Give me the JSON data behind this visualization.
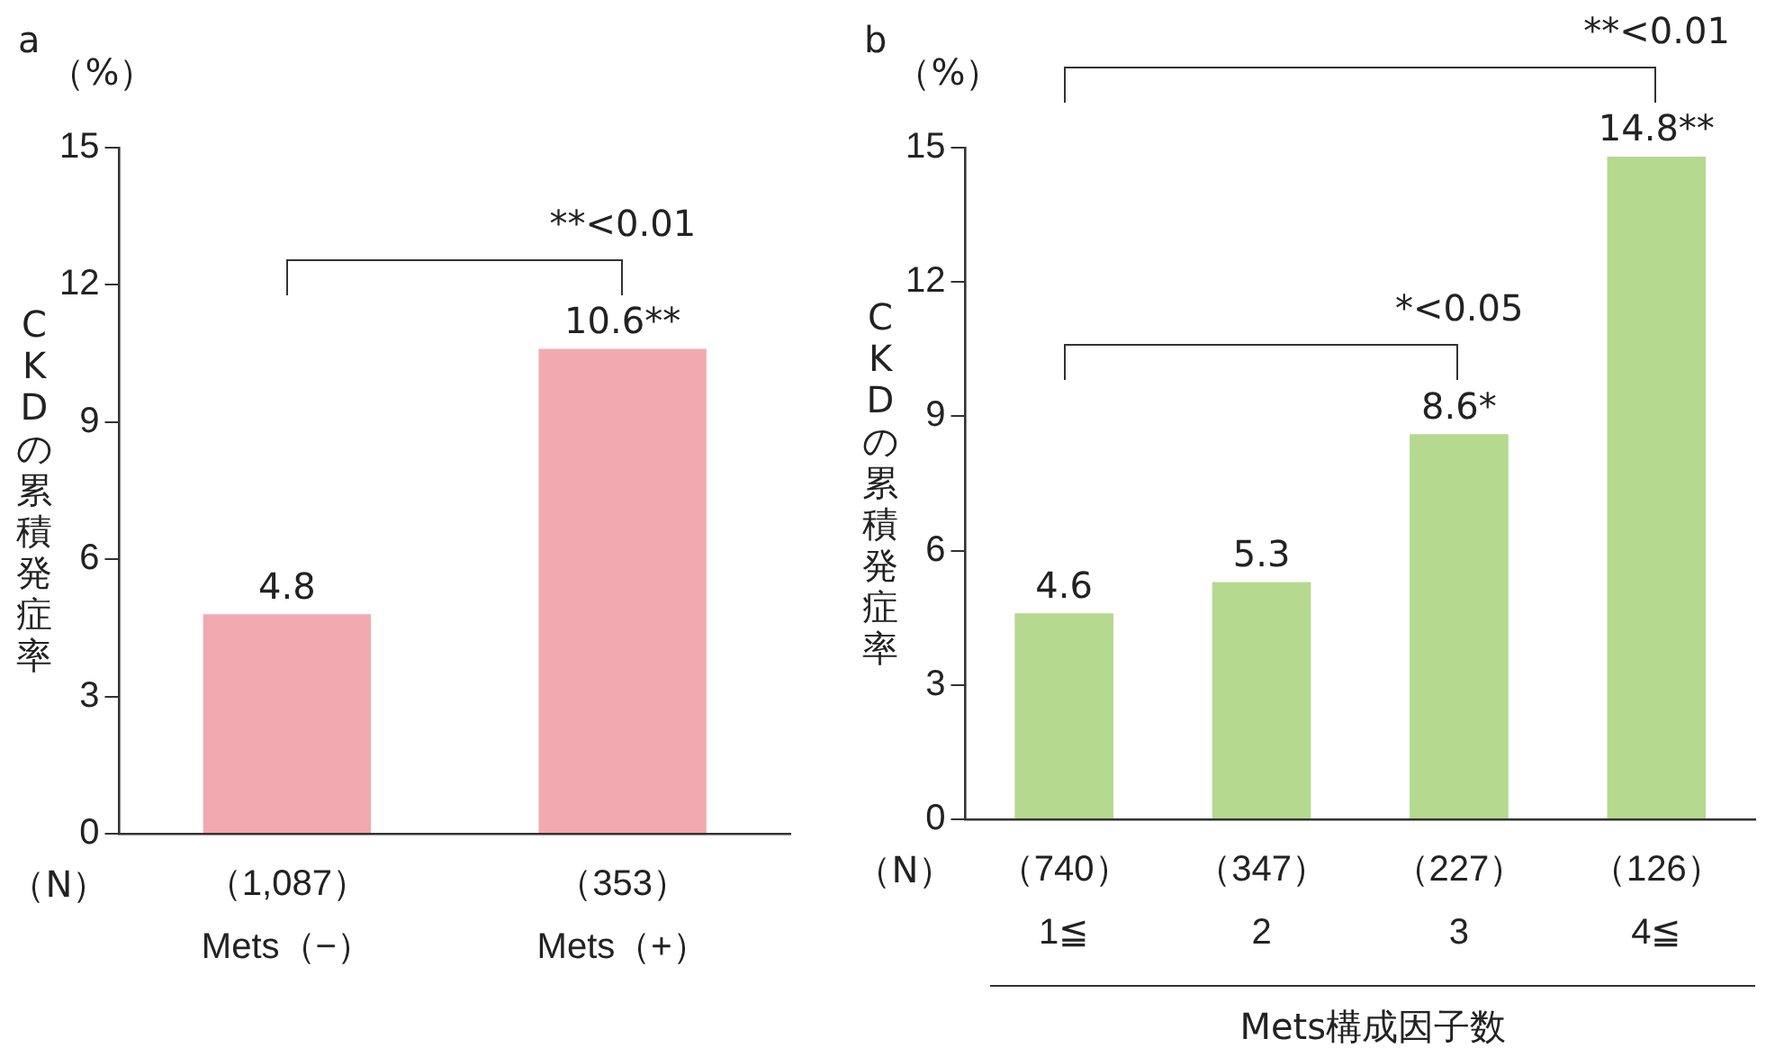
{
  "chart_data": [
    {
      "type": "bar",
      "title": "a",
      "ylabel": "CKDの累積発症率",
      "categories": [
        "（1,087）\nMets（−）",
        "（353）\nMets（+）"
      ],
      "values": [
        4.8,
        10.6
      ],
      "value_labels": [
        "4.8",
        "10.6**"
      ],
      "color": "#f2a9b0",
      "ylim": [
        0,
        15
      ],
      "yticks": [
        0,
        3,
        6,
        9,
        12,
        15
      ],
      "annotations": [
        "（%）",
        "（N）",
        "**<0.01"
      ]
    },
    {
      "type": "bar",
      "title": "b",
      "ylabel": "CKDの累積発症率",
      "xlabel": "Mets構成因子数",
      "categories": [
        "（740）\n1≦",
        "（347）\n2",
        "（227）\n3",
        "（126）\n4≦"
      ],
      "values": [
        4.6,
        5.3,
        8.6,
        14.8
      ],
      "value_labels": [
        "4.6",
        "5.3",
        "8.6*",
        "14.8**"
      ],
      "color": "#b5d98f",
      "ylim": [
        0,
        15
      ],
      "yticks": [
        0,
        3,
        6,
        9,
        12,
        15
      ],
      "annotations": [
        "（%）",
        "（N）",
        "*<0.05",
        "**<0.01"
      ]
    }
  ]
}
